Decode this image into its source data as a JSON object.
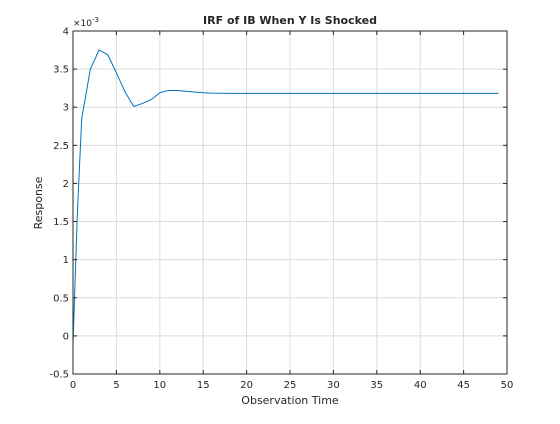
{
  "chart_data": {
    "type": "line",
    "title": "IRF of IB When Y Is Shocked",
    "xlabel": "Observation Time",
    "ylabel": "Response",
    "exponent_label": "×10",
    "exponent_power": "-3",
    "xlim": [
      0,
      50
    ],
    "ylim": [
      -0.5,
      4
    ],
    "xticks": [
      0,
      5,
      10,
      15,
      20,
      25,
      30,
      35,
      40,
      45,
      50
    ],
    "xtick_labels": [
      "0",
      "5",
      "10",
      "15",
      "20",
      "25",
      "30",
      "35",
      "40",
      "45",
      "50"
    ],
    "yticks": [
      -0.5,
      0,
      0.5,
      1,
      1.5,
      2,
      2.5,
      3,
      3.5,
      4
    ],
    "ytick_labels": [
      "-0.5",
      "0",
      "0.5",
      "1",
      "1.5",
      "2",
      "2.5",
      "3",
      "3.5",
      "4"
    ],
    "grid": true,
    "line_color": "#0072BD",
    "series": [
      {
        "x": [
          0,
          0.5,
          1,
          2,
          3,
          4,
          5,
          6,
          7,
          8,
          9,
          10,
          11,
          12,
          13,
          14,
          15,
          16,
          17,
          18,
          19,
          20,
          25,
          30,
          35,
          40,
          45,
          49
        ],
        "values": [
          -0.1,
          1.6,
          2.85,
          3.5,
          3.75,
          3.69,
          3.45,
          3.2,
          3.01,
          3.05,
          3.1,
          3.19,
          3.22,
          3.22,
          3.21,
          3.2,
          3.19,
          3.185,
          3.183,
          3.182,
          3.182,
          3.182,
          3.182,
          3.182,
          3.182,
          3.182,
          3.182,
          3.182
        ]
      }
    ]
  }
}
